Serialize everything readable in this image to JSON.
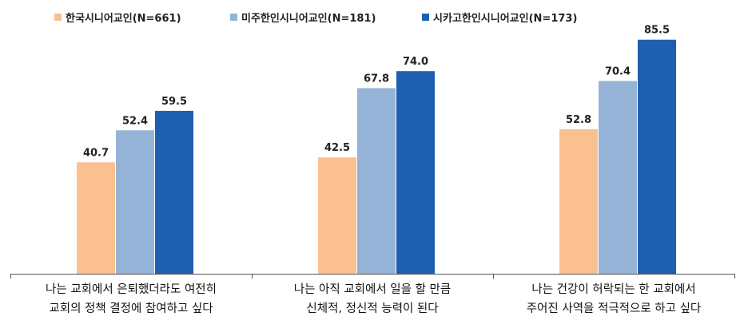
{
  "chart_data": {
    "type": "bar",
    "categories": [
      [
        "나는 교회에서 은퇴했더라도 여전히",
        "교회의 정책 결정에 참여하고 싶다"
      ],
      [
        "나는 아직 교회에서 일을 할 만큼",
        "신체적, 정신적 능력이 된다"
      ],
      [
        "나는 건강이 허락되는 한 교회에서",
        "주어진 사역을 적극적으로 하고 싶다"
      ]
    ],
    "series": [
      {
        "name": "한국시니어교인(N=661)",
        "color": "#FAC090",
        "values": [
          40.7,
          42.5,
          52.8
        ]
      },
      {
        "name": "미주한인시니어교인(N=181)",
        "color": "#95B3D7",
        "values": [
          52.4,
          67.8,
          70.4
        ]
      },
      {
        "name": "시카고한인시니어교인(N=173)",
        "color": "#1F5FAF",
        "values": [
          59.5,
          74.0,
          85.5
        ]
      }
    ],
    "value_labels": [
      [
        "40.7",
        "42.5",
        "52.8"
      ],
      [
        "52.4",
        "67.8",
        "70.4"
      ],
      [
        "59.5",
        "74.0",
        "85.5"
      ]
    ],
    "ylim": [
      0,
      100
    ],
    "legend": "top",
    "grid": false
  }
}
